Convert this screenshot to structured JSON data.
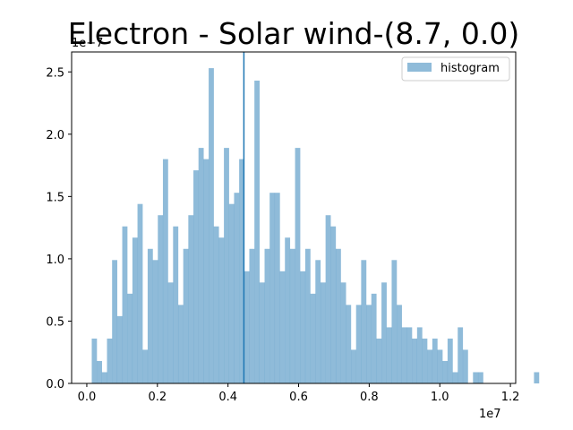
{
  "chart_data": {
    "type": "bar",
    "title": "Electron - Solar wind-(8.7, 0.0)",
    "xlabel": "",
    "ylabel": "",
    "x_offset_label": "1e7",
    "y_offset_label": "1e−7",
    "xlim": [
      -0.043,
      1.215
    ],
    "ylim": [
      0.0,
      2.66
    ],
    "x_ticks": [
      0.0,
      0.2,
      0.4,
      0.6,
      0.8,
      1.0,
      1.2
    ],
    "x_tick_labels": [
      "0.0",
      "0.2",
      "0.4",
      "0.6",
      "0.8",
      "1.0",
      "1.2"
    ],
    "y_ticks": [
      0.0,
      0.5,
      1.0,
      1.5,
      2.0,
      2.5
    ],
    "y_tick_labels": [
      "0.0",
      "0.5",
      "1.0",
      "1.5",
      "2.0",
      "2.5"
    ],
    "grid": false,
    "legend_position": "top-right",
    "series": [
      {
        "name": "histogram",
        "color": "#1f77b4",
        "alpha": 0.5,
        "bin_start": 0.014,
        "bin_width": 0.0144,
        "values": [
          0.36,
          0.18,
          0.09,
          0.36,
          0.99,
          0.54,
          1.26,
          0.72,
          1.17,
          1.44,
          0.27,
          1.08,
          0.99,
          1.35,
          1.8,
          0.81,
          1.26,
          0.63,
          1.08,
          1.35,
          1.71,
          1.89,
          1.8,
          2.53,
          1.26,
          1.17,
          1.89,
          1.44,
          1.53,
          1.8,
          0.9,
          1.08,
          2.43,
          0.81,
          1.08,
          1.53,
          1.53,
          0.9,
          1.17,
          1.08,
          1.89,
          0.9,
          1.08,
          0.72,
          0.99,
          0.81,
          1.35,
          1.26,
          1.08,
          0.81,
          0.63,
          0.27,
          0.63,
          0.99,
          0.63,
          0.72,
          0.36,
          0.81,
          0.45,
          0.99,
          0.63,
          0.45,
          0.45,
          0.36,
          0.45,
          0.36,
          0.27,
          0.36,
          0.27,
          0.18,
          0.36,
          0.09,
          0.45,
          0.27,
          0.0,
          0.09,
          0.09,
          0.0,
          0.0,
          0.0,
          0.0,
          0.0,
          0.0,
          0.0,
          0.0,
          0.0,
          0.0,
          0.09
        ]
      }
    ],
    "vline": {
      "x": 0.445,
      "color": "#1f77b4"
    }
  }
}
